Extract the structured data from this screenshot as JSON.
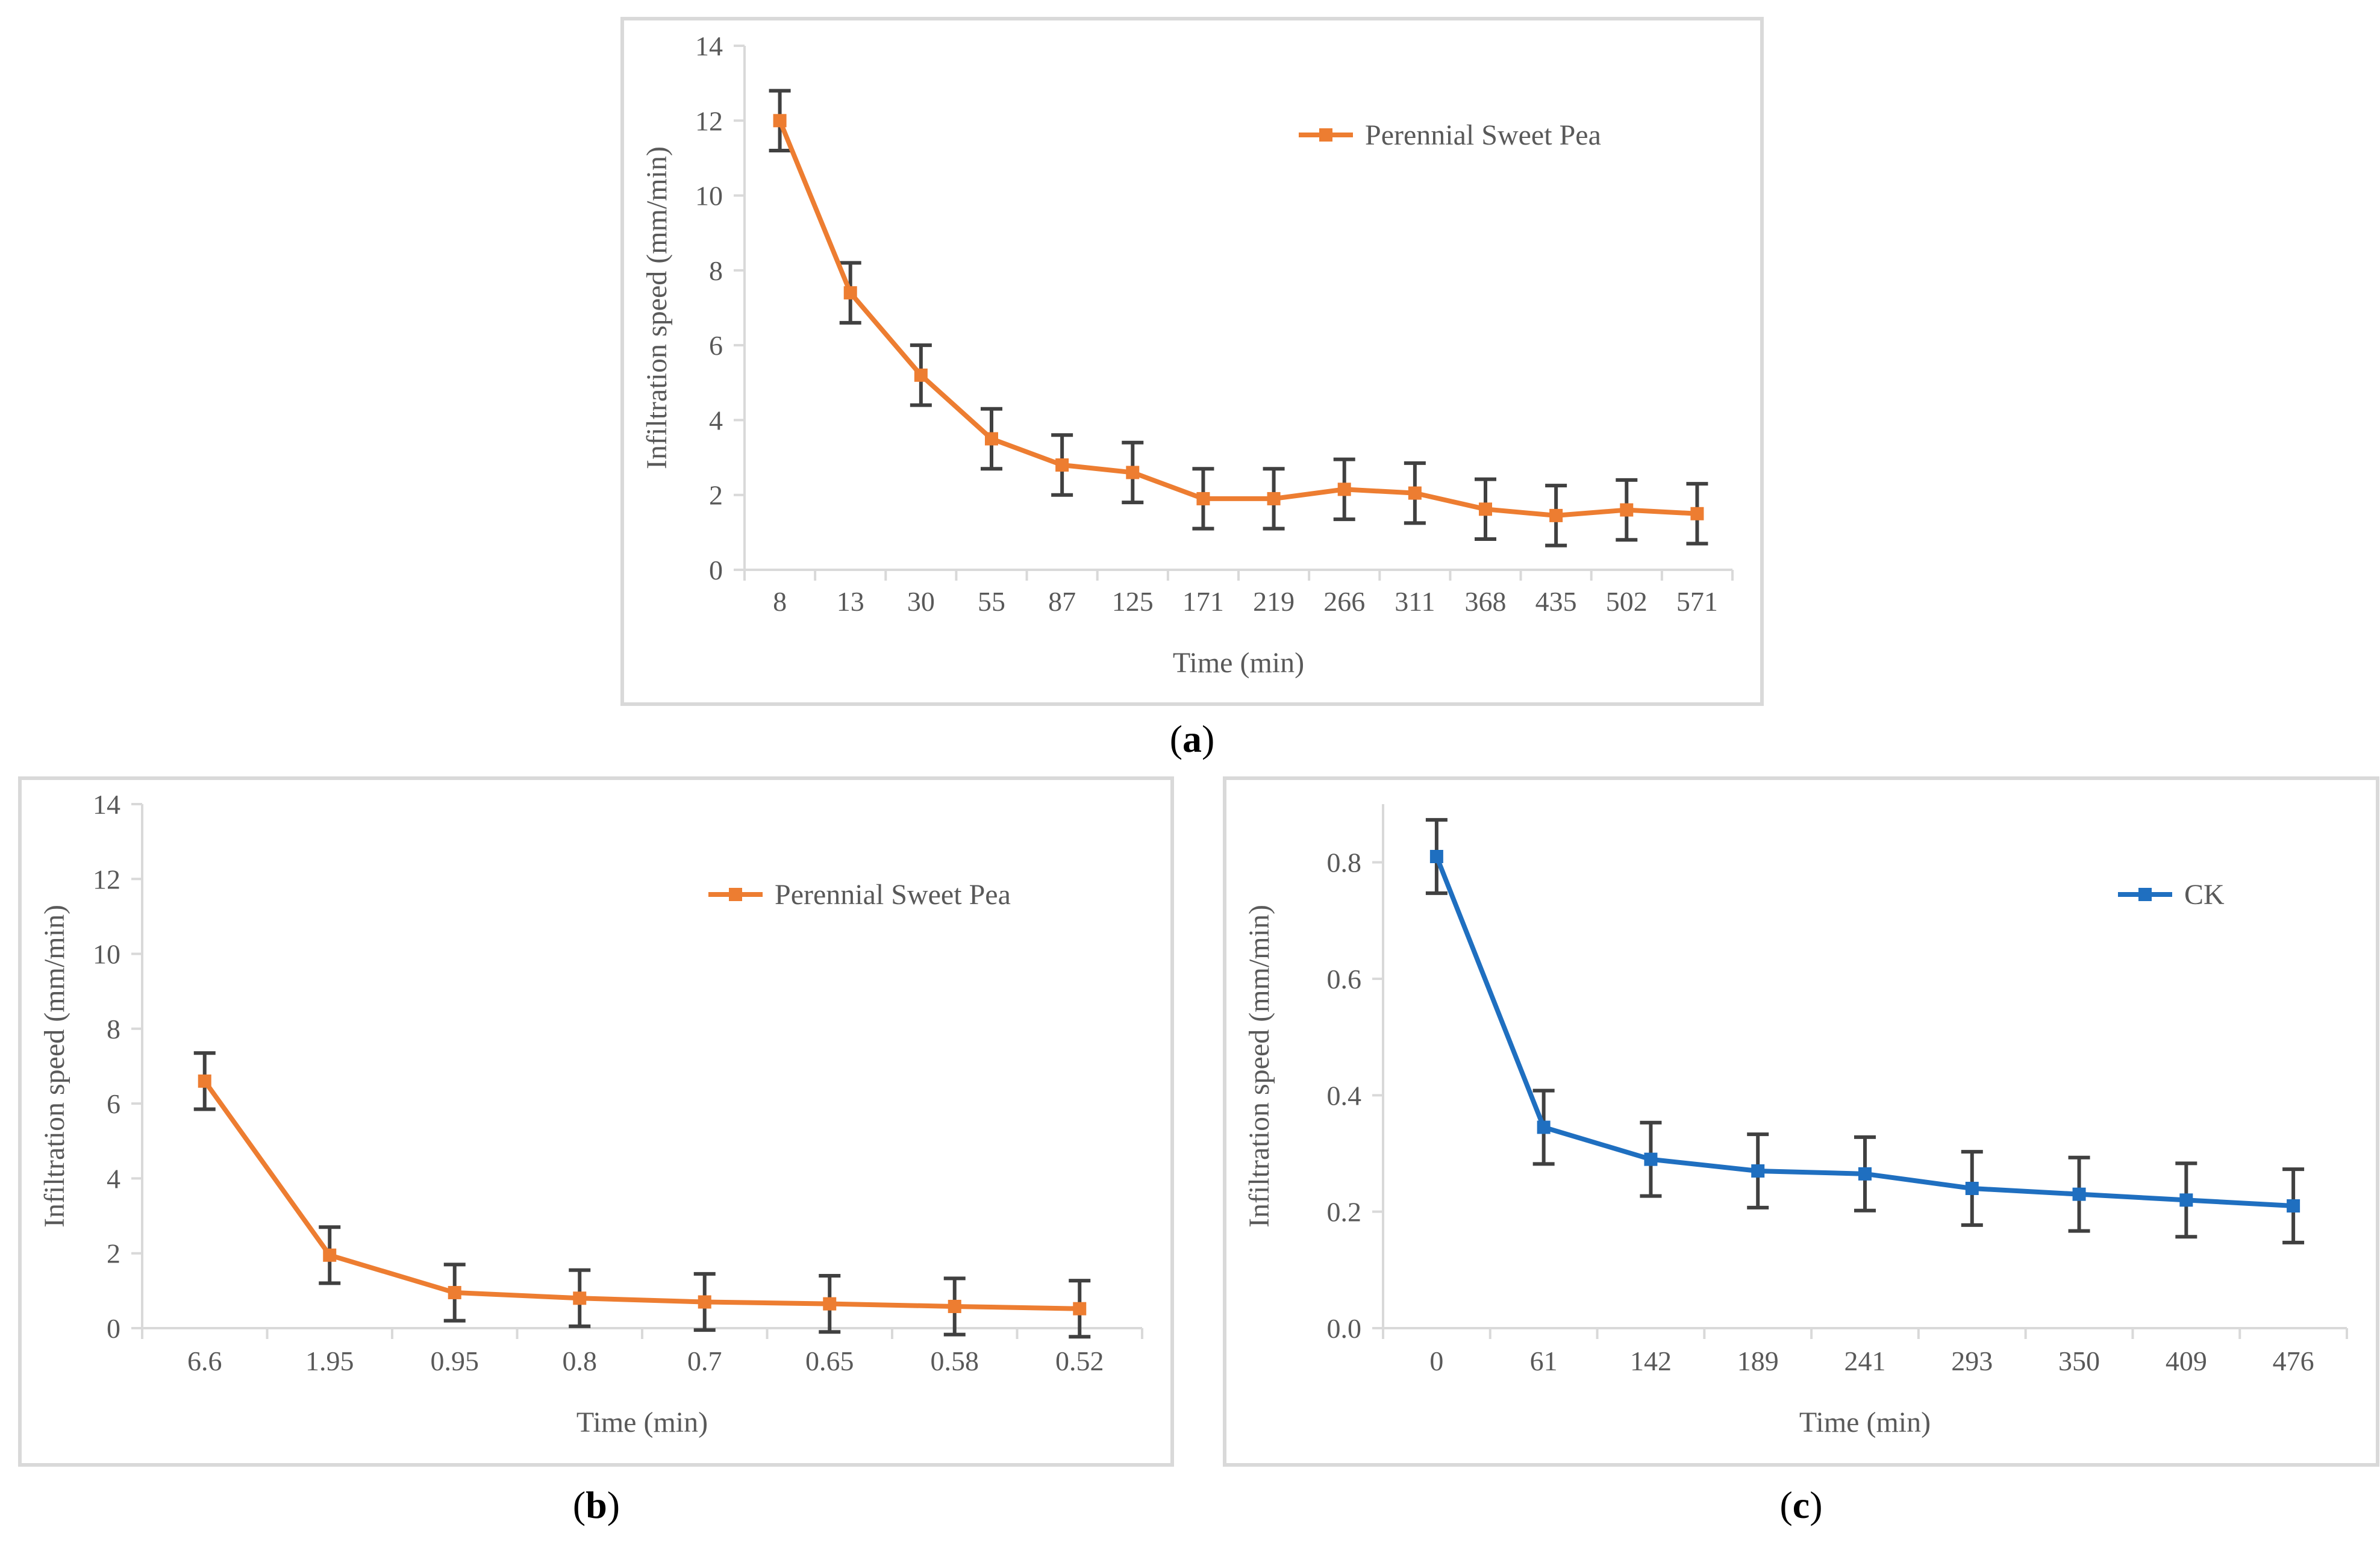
{
  "chart_data": [
    {
      "id": "a",
      "type": "line",
      "caption_letter": "a",
      "xlabel": "Time (min)",
      "ylabel": "Infiltration speed (mm/min)",
      "categories": [
        "8",
        "13",
        "30",
        "55",
        "87",
        "125",
        "171",
        "219",
        "266",
        "311",
        "368",
        "435",
        "502",
        "571"
      ],
      "yticks": [
        "0",
        "2",
        "4",
        "6",
        "8",
        "10",
        "12",
        "14"
      ],
      "ylim": [
        0,
        14
      ],
      "series": [
        {
          "name": "Perennial Sweet Pea",
          "color": "#ed7d31",
          "values": [
            12.0,
            7.4,
            5.2,
            3.5,
            2.8,
            2.6,
            1.9,
            1.9,
            2.15,
            2.05,
            1.62,
            1.45,
            1.6,
            1.5
          ],
          "error": [
            0.8,
            0.8,
            0.8,
            0.8,
            0.8,
            0.8,
            0.8,
            0.8,
            0.8,
            0.8,
            0.8,
            0.8,
            0.8,
            0.8
          ]
        }
      ],
      "legend": "top-right"
    },
    {
      "id": "b",
      "type": "line",
      "caption_letter": "b",
      "xlabel": "Time (min)",
      "ylabel": "Infiltration speed (mm/min)",
      "categories": [
        "6.6",
        "1.95",
        "0.95",
        "0.8",
        "0.7",
        "0.65",
        "0.58",
        "0.52"
      ],
      "yticks": [
        "0",
        "2",
        "4",
        "6",
        "8",
        "10",
        "12",
        "14"
      ],
      "ylim": [
        0,
        14
      ],
      "series": [
        {
          "name": "Perennial Sweet Pea",
          "color": "#ed7d31",
          "values": [
            6.6,
            1.95,
            0.95,
            0.8,
            0.7,
            0.65,
            0.58,
            0.52
          ],
          "error": [
            0.75,
            0.75,
            0.75,
            0.75,
            0.75,
            0.75,
            0.75,
            0.75
          ]
        }
      ],
      "legend": "top-right"
    },
    {
      "id": "c",
      "type": "line",
      "caption_letter": "c",
      "xlabel": "Time (min)",
      "ylabel": "Infiltration speed (mm/min)",
      "categories": [
        "0",
        "61",
        "142",
        "189",
        "241",
        "293",
        "350",
        "409",
        "476"
      ],
      "yticks": [
        "0.0",
        "0.2",
        "0.4",
        "0.6",
        "0.8"
      ],
      "ylim": [
        0,
        0.9
      ],
      "series": [
        {
          "name": "CK",
          "color": "#1f6fc0",
          "values": [
            0.81,
            0.345,
            0.29,
            0.27,
            0.265,
            0.24,
            0.23,
            0.22,
            0.21
          ],
          "error": [
            0.063,
            0.063,
            0.063,
            0.063,
            0.063,
            0.063,
            0.063,
            0.063,
            0.063
          ]
        }
      ],
      "legend": "top-right"
    }
  ]
}
